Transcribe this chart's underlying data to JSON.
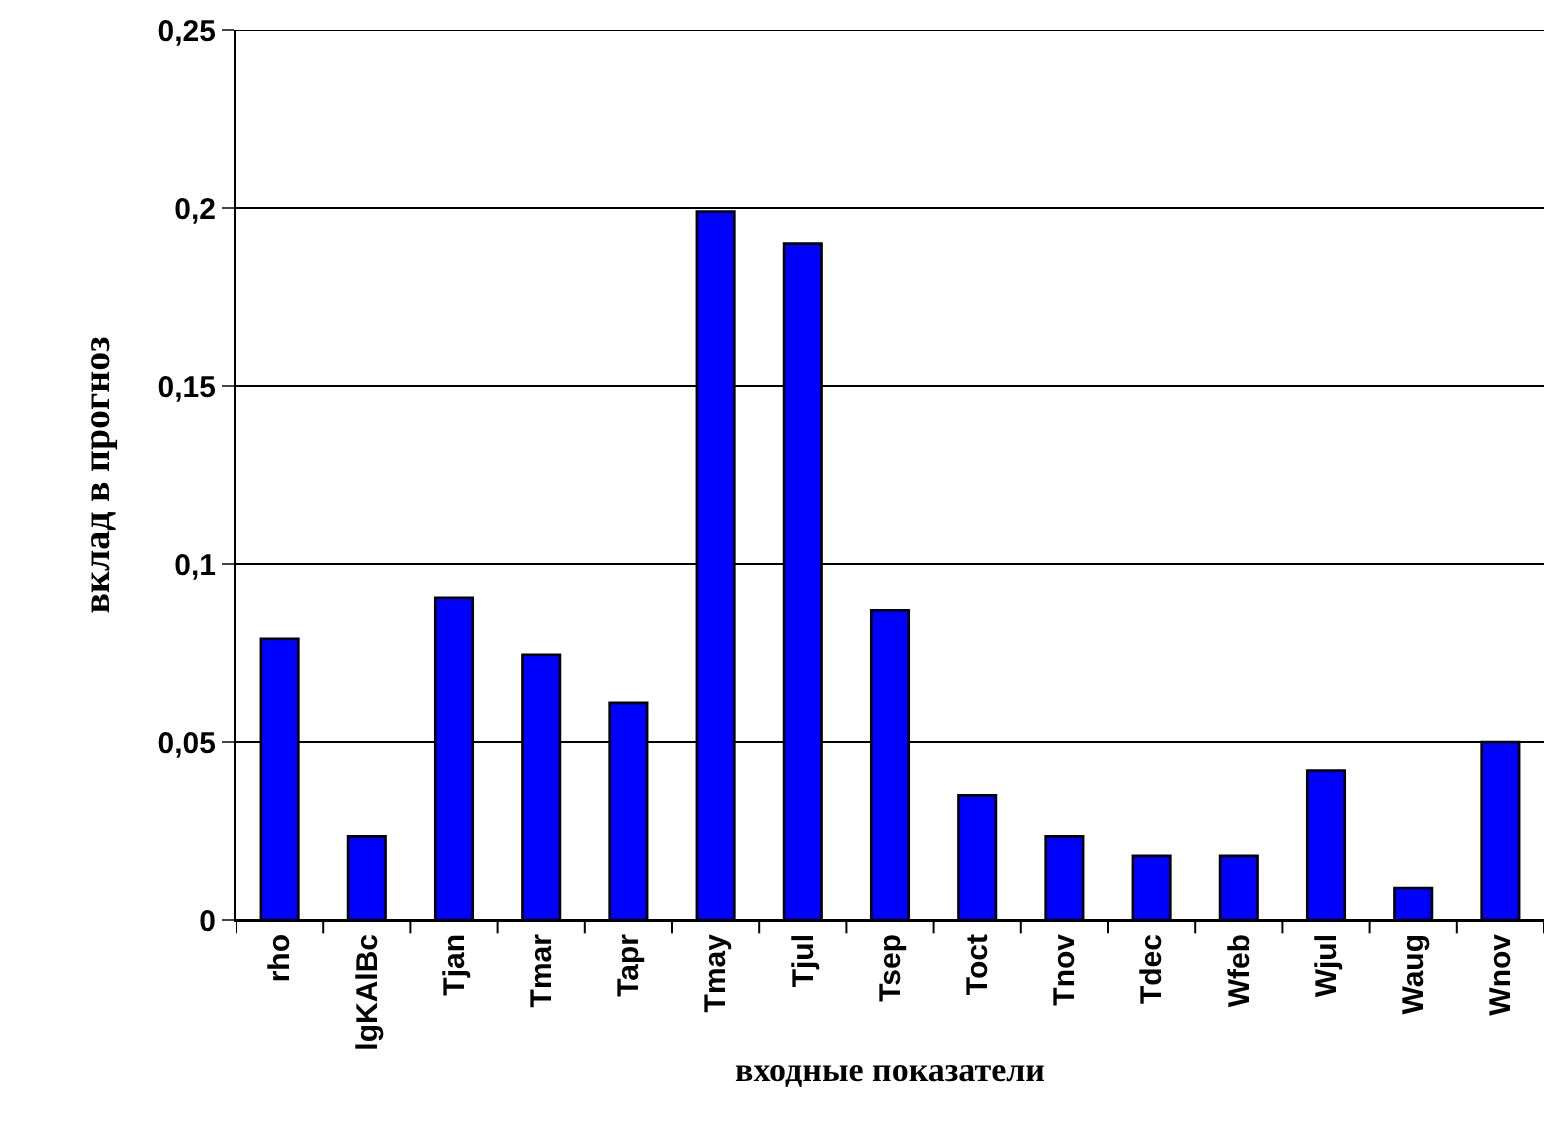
{
  "chart_data": {
    "type": "bar",
    "xlabel": "входные показатели",
    "ylabel": "вклад в прогноз",
    "categories": [
      "rho",
      "lgKAlBc",
      "Tjan",
      "Tmar",
      "Tapr",
      "Tmay",
      "Tjul",
      "Tsep",
      "Toct",
      "Tnov",
      "Tdec",
      "Wfeb",
      "Wjul",
      "Waug",
      "Wnov"
    ],
    "series": [
      {
        "color": "#0000ff",
        "values": [
          0.079,
          0.0235,
          0.0905,
          0.0745,
          0.061,
          0.199,
          0.19,
          0.087,
          0.035,
          0.0235,
          0.018,
          0.018,
          0.042,
          0.009,
          0.05
        ]
      }
    ],
    "ylim": [
      0,
      0.25
    ],
    "yticks": [
      {
        "value": 0,
        "label": "0"
      },
      {
        "value": 0.05,
        "label": "0,05"
      },
      {
        "value": 0.1,
        "label": "0,1"
      },
      {
        "value": 0.15,
        "label": "0,15"
      },
      {
        "value": 0.2,
        "label": "0,2"
      },
      {
        "value": 0.25,
        "label": "0,25"
      }
    ],
    "grid": "y"
  }
}
